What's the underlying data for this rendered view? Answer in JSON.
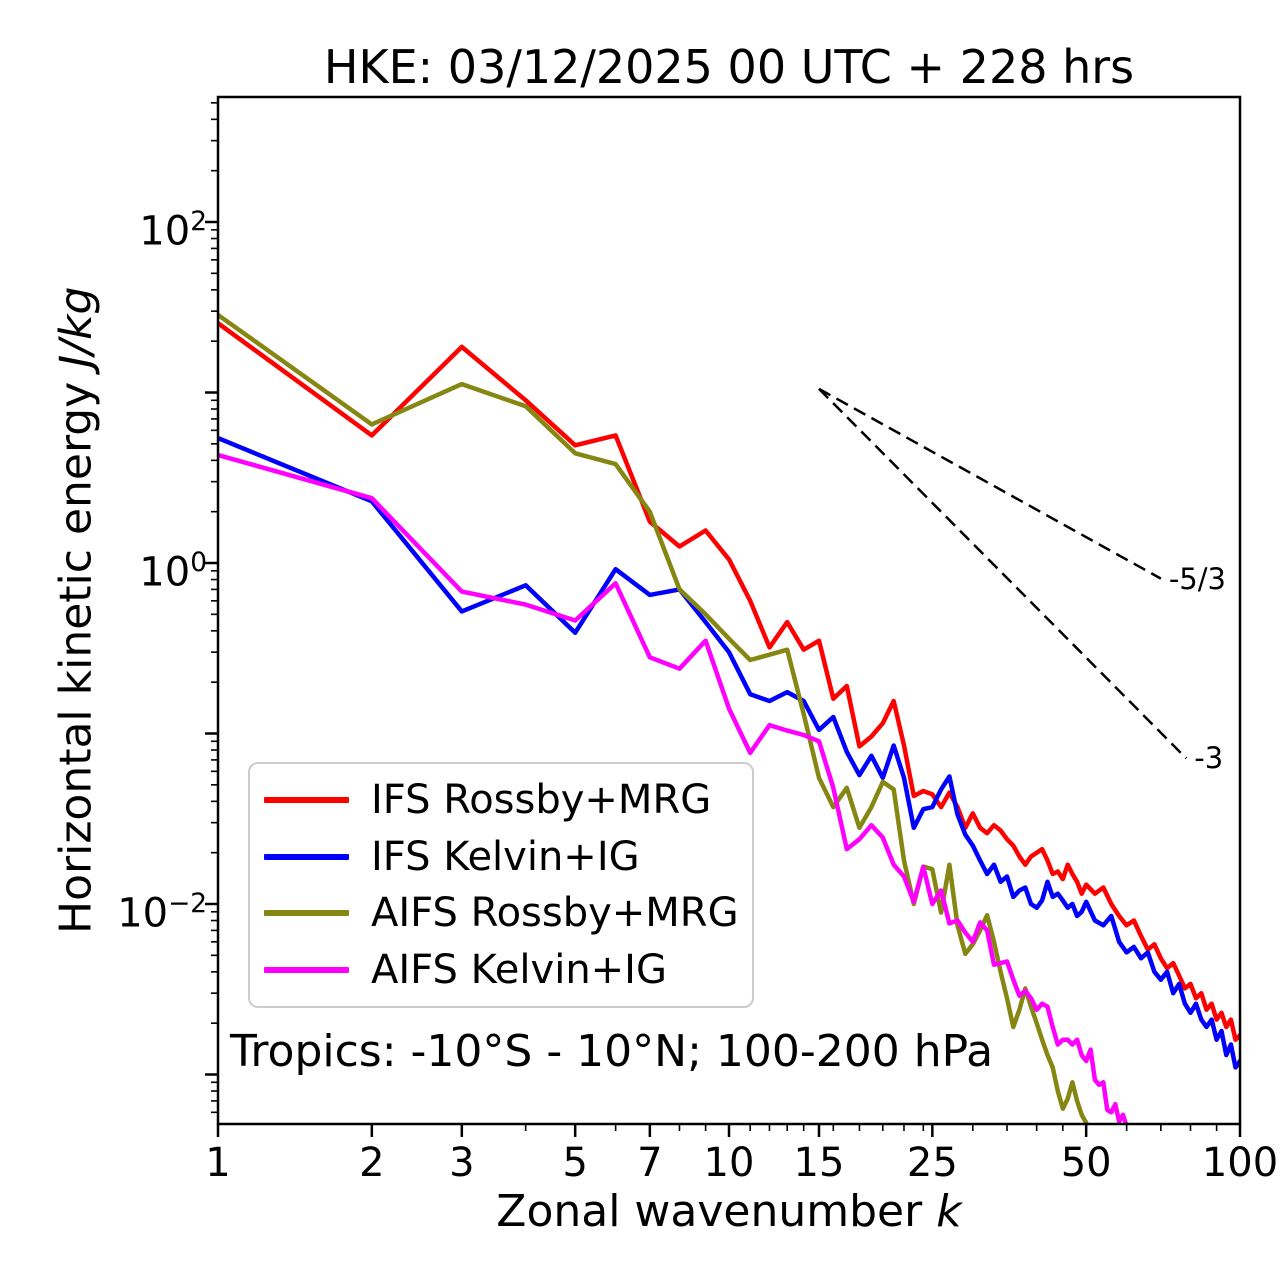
{
  "title": "HKE: 03/12/2025 00 UTC + 228 hrs",
  "axes": {
    "x_label": {
      "prefix": "Zonal wavenumber ",
      "math": "k"
    },
    "y_label": {
      "prefix": "Horizontal kinetic energy ",
      "math": "J/kg"
    },
    "x_major_ticks": [
      {
        "value": 1,
        "label": "1"
      },
      {
        "value": 2,
        "label": "2"
      },
      {
        "value": 3,
        "label": "3"
      },
      {
        "value": 5,
        "label": "5"
      },
      {
        "value": 7,
        "label": "7"
      },
      {
        "value": 10,
        "label": "10"
      },
      {
        "value": 15,
        "label": "15"
      },
      {
        "value": 25,
        "label": "25"
      },
      {
        "value": 50,
        "label": "50"
      },
      {
        "value": 100,
        "label": "100"
      }
    ],
    "x_minor_ticks": [
      4,
      6,
      8,
      9,
      11,
      12,
      13,
      14,
      16,
      18,
      20,
      22,
      24,
      30,
      35,
      40,
      45,
      60,
      70,
      80,
      90
    ],
    "y_major_ticks": [
      {
        "exponent": 2,
        "mantissa": "10",
        "sup": "2"
      },
      {
        "exponent": 0,
        "mantissa": "10",
        "sup": "0"
      },
      {
        "exponent": -2,
        "mantissa": "10",
        "sup": "−2"
      }
    ],
    "y_unlabeled_decade_exponents": [
      1,
      -1,
      -3
    ]
  },
  "annotations": {
    "region": "Tropics: -10°S - 10°N; 100-200 hPa",
    "slope_references": [
      {
        "label": "-5/3",
        "from_k": 15,
        "from_E": 10.5,
        "to_k": 70,
        "to_E": 0.81
      },
      {
        "label": "-3",
        "from_k": 15,
        "from_E": 10.5,
        "to_k": 78.5,
        "to_E": 0.0715
      }
    ]
  },
  "chart_data": {
    "type": "line",
    "title": "HKE: 03/12/2025 00 UTC + 228 hrs",
    "xlabel": "Zonal wavenumber k",
    "ylabel": "Horizontal kinetic energy J/kg",
    "x_axis": {
      "scale": "log",
      "range": [
        1,
        100
      ],
      "ticks": [
        1,
        2,
        3,
        5,
        7,
        10,
        15,
        25,
        50,
        100
      ]
    },
    "y_axis": {
      "scale": "log",
      "labeled_tick_exponents": [
        2,
        0,
        -2
      ],
      "visible_range_exponents": [
        -3.29,
        2.73
      ]
    },
    "grid": false,
    "legend_position": "lower-left",
    "reference_slopes": [
      "-5/3",
      "-3"
    ],
    "series": [
      {
        "name": "IFS Rossby+MRG",
        "color": "#ff0000",
        "points": [
          [
            1,
            25.5
          ],
          [
            2,
            5.6
          ],
          [
            3,
            18.5
          ],
          [
            4,
            9.0
          ],
          [
            5,
            4.9
          ],
          [
            6,
            5.6
          ],
          [
            7,
            1.75
          ],
          [
            8,
            1.25
          ],
          [
            9,
            1.55
          ],
          [
            10,
            1.05
          ],
          [
            11,
            0.6
          ],
          [
            12,
            0.32
          ],
          [
            13,
            0.45
          ],
          [
            14,
            0.31
          ],
          [
            15,
            0.35
          ],
          [
            16,
            0.16
          ],
          [
            17,
            0.19
          ],
          [
            18,
            0.084
          ],
          [
            19,
            0.096
          ],
          [
            20,
            0.115
          ],
          [
            21,
            0.155
          ],
          [
            22,
            0.085
          ],
          [
            23,
            0.043
          ],
          [
            24,
            0.046
          ],
          [
            25,
            0.044
          ],
          [
            26,
            0.037
          ],
          [
            27,
            0.045
          ],
          [
            28,
            0.037
          ],
          [
            29,
            0.028
          ],
          [
            30,
            0.034
          ],
          [
            31,
            0.028
          ],
          [
            32,
            0.026
          ],
          [
            33,
            0.029
          ],
          [
            34,
            0.027
          ],
          [
            35,
            0.024
          ],
          [
            36,
            0.022
          ],
          [
            37,
            0.019
          ],
          [
            38,
            0.017
          ],
          [
            39,
            0.019
          ],
          [
            40,
            0.02
          ],
          [
            41,
            0.021
          ],
          [
            42,
            0.018
          ],
          [
            43,
            0.015
          ],
          [
            44,
            0.0155
          ],
          [
            45,
            0.014
          ],
          [
            46,
            0.017
          ],
          [
            47,
            0.015
          ],
          [
            48,
            0.0135
          ],
          [
            49,
            0.0115
          ],
          [
            50,
            0.013
          ],
          [
            52,
            0.0115
          ],
          [
            54,
            0.0125
          ],
          [
            56,
            0.01
          ],
          [
            58,
            0.0085
          ],
          [
            60,
            0.0075
          ],
          [
            62,
            0.008
          ],
          [
            64,
            0.0065
          ],
          [
            66,
            0.0054
          ],
          [
            68,
            0.0058
          ],
          [
            70,
            0.0048
          ],
          [
            72,
            0.0042
          ],
          [
            74,
            0.0045
          ],
          [
            76,
            0.0038
          ],
          [
            78,
            0.0032
          ],
          [
            80,
            0.0034
          ],
          [
            82,
            0.0028
          ],
          [
            84,
            0.003
          ],
          [
            86,
            0.0024
          ],
          [
            88,
            0.0026
          ],
          [
            90,
            0.0021
          ],
          [
            92,
            0.0023
          ],
          [
            94,
            0.0019
          ],
          [
            96,
            0.0021
          ],
          [
            98,
            0.0016
          ],
          [
            100,
            0.0017
          ]
        ]
      },
      {
        "name": "IFS Kelvin+IG",
        "color": "#0000ff",
        "points": [
          [
            1,
            5.4
          ],
          [
            2,
            2.3
          ],
          [
            3,
            0.52
          ],
          [
            4,
            0.74
          ],
          [
            5,
            0.39
          ],
          [
            6,
            0.92
          ],
          [
            7,
            0.65
          ],
          [
            8,
            0.7
          ],
          [
            9,
            0.45
          ],
          [
            10,
            0.3
          ],
          [
            11,
            0.17
          ],
          [
            12,
            0.155
          ],
          [
            13,
            0.175
          ],
          [
            14,
            0.155
          ],
          [
            15,
            0.105
          ],
          [
            16,
            0.125
          ],
          [
            17,
            0.078
          ],
          [
            18,
            0.057
          ],
          [
            19,
            0.074
          ],
          [
            20,
            0.055
          ],
          [
            21,
            0.085
          ],
          [
            22,
            0.055
          ],
          [
            23,
            0.028
          ],
          [
            24,
            0.036
          ],
          [
            25,
            0.037
          ],
          [
            26,
            0.047
          ],
          [
            27,
            0.056
          ],
          [
            28,
            0.0335
          ],
          [
            29,
            0.0255
          ],
          [
            30,
            0.022
          ],
          [
            31,
            0.018
          ],
          [
            32,
            0.015
          ],
          [
            33,
            0.017
          ],
          [
            34,
            0.0135
          ],
          [
            35,
            0.0145
          ],
          [
            36,
            0.011
          ],
          [
            37,
            0.012
          ],
          [
            38,
            0.0125
          ],
          [
            39,
            0.01
          ],
          [
            40,
            0.0095
          ],
          [
            41,
            0.0105
          ],
          [
            42,
            0.0135
          ],
          [
            43,
            0.011
          ],
          [
            44,
            0.0115
          ],
          [
            45,
            0.0105
          ],
          [
            46,
            0.0095
          ],
          [
            47,
            0.01
          ],
          [
            48,
            0.0085
          ],
          [
            49,
            0.009
          ],
          [
            50,
            0.0103
          ],
          [
            52,
            0.008
          ],
          [
            54,
            0.0075
          ],
          [
            56,
            0.0085
          ],
          [
            58,
            0.006
          ],
          [
            60,
            0.0052
          ],
          [
            62,
            0.0056
          ],
          [
            64,
            0.0048
          ],
          [
            66,
            0.0052
          ],
          [
            68,
            0.004
          ],
          [
            70,
            0.0036
          ],
          [
            72,
            0.004
          ],
          [
            74,
            0.003
          ],
          [
            76,
            0.0034
          ],
          [
            78,
            0.0026
          ],
          [
            80,
            0.0023
          ],
          [
            82,
            0.0026
          ],
          [
            84,
            0.0021
          ],
          [
            86,
            0.0019
          ],
          [
            88,
            0.0021
          ],
          [
            90,
            0.0016
          ],
          [
            92,
            0.0018
          ],
          [
            94,
            0.0013
          ],
          [
            96,
            0.0015
          ],
          [
            98,
            0.0011
          ],
          [
            100,
            0.0012
          ]
        ]
      },
      {
        "name": "AIFS Rossby+MRG",
        "color": "#868613",
        "points": [
          [
            1,
            28.5
          ],
          [
            2,
            6.5
          ],
          [
            3,
            11.2
          ],
          [
            4,
            8.3
          ],
          [
            5,
            4.4
          ],
          [
            6,
            3.8
          ],
          [
            7,
            2.0
          ],
          [
            8,
            0.7
          ],
          [
            9,
            0.5
          ],
          [
            10,
            0.36
          ],
          [
            11,
            0.27
          ],
          [
            12,
            0.29
          ],
          [
            13,
            0.31
          ],
          [
            14,
            0.13
          ],
          [
            15,
            0.055
          ],
          [
            16,
            0.037
          ],
          [
            17,
            0.048
          ],
          [
            18,
            0.028
          ],
          [
            19,
            0.037
          ],
          [
            20,
            0.052
          ],
          [
            21,
            0.047
          ],
          [
            22,
            0.018
          ],
          [
            23,
            0.01
          ],
          [
            24,
            0.0166
          ],
          [
            25,
            0.016
          ],
          [
            26,
            0.0089
          ],
          [
            27,
            0.017
          ],
          [
            28,
            0.0075
          ],
          [
            29,
            0.0051
          ],
          [
            30,
            0.0058
          ],
          [
            31,
            0.007
          ],
          [
            32,
            0.0086
          ],
          [
            33,
            0.006
          ],
          [
            34,
            0.004
          ],
          [
            35,
            0.0028
          ],
          [
            36,
            0.0019
          ],
          [
            37,
            0.0024
          ],
          [
            38,
            0.0032
          ],
          [
            39,
            0.0025
          ],
          [
            40,
            0.002
          ],
          [
            41,
            0.0016
          ],
          [
            42,
            0.0013
          ],
          [
            43,
            0.0011
          ],
          [
            44,
            0.0008
          ],
          [
            45,
            0.00063
          ],
          [
            46,
            0.00072
          ],
          [
            47,
            0.0009
          ],
          [
            48,
            0.0007
          ],
          [
            49,
            0.00058
          ],
          [
            50,
            0.00052
          ],
          [
            51,
            0.00047
          ],
          [
            52,
            0.0004
          ]
        ]
      },
      {
        "name": "AIFS Kelvin+IG",
        "color": "#ff00ff",
        "points": [
          [
            1,
            4.3
          ],
          [
            2,
            2.4
          ],
          [
            3,
            0.68
          ],
          [
            4,
            0.57
          ],
          [
            5,
            0.46
          ],
          [
            6,
            0.76
          ],
          [
            7,
            0.28
          ],
          [
            8,
            0.24
          ],
          [
            9,
            0.35
          ],
          [
            10,
            0.14
          ],
          [
            11,
            0.077
          ],
          [
            12,
            0.112
          ],
          [
            13,
            0.104
          ],
          [
            14,
            0.098
          ],
          [
            15,
            0.09
          ],
          [
            16,
            0.048
          ],
          [
            17,
            0.021
          ],
          [
            18,
            0.024
          ],
          [
            19,
            0.029
          ],
          [
            20,
            0.0245
          ],
          [
            21,
            0.017
          ],
          [
            22,
            0.0145
          ],
          [
            23,
            0.0103
          ],
          [
            24,
            0.0165
          ],
          [
            25,
            0.01
          ],
          [
            26,
            0.012
          ],
          [
            27,
            0.0077
          ],
          [
            28,
            0.008
          ],
          [
            29,
            0.0068
          ],
          [
            30,
            0.006
          ],
          [
            31,
            0.0078
          ],
          [
            32,
            0.007
          ],
          [
            33,
            0.0044
          ],
          [
            34,
            0.0045
          ],
          [
            35,
            0.0046
          ],
          [
            36,
            0.0036
          ],
          [
            37,
            0.0029
          ],
          [
            38,
            0.0031
          ],
          [
            39,
            0.0028
          ],
          [
            40,
            0.0024
          ],
          [
            41,
            0.0026
          ],
          [
            42,
            0.0025
          ],
          [
            43,
            0.0019
          ],
          [
            44,
            0.0015
          ],
          [
            45,
            0.0016
          ],
          [
            46,
            0.0016
          ],
          [
            47,
            0.0015
          ],
          [
            48,
            0.0016
          ],
          [
            49,
            0.0013
          ],
          [
            50,
            0.0012
          ],
          [
            51,
            0.0014
          ],
          [
            52,
            0.00093
          ],
          [
            53,
            0.00087
          ],
          [
            54,
            0.0009
          ],
          [
            55,
            0.00062
          ],
          [
            56,
            0.0006
          ],
          [
            57,
            0.00067
          ],
          [
            58,
            0.00053
          ],
          [
            59,
            0.00058
          ],
          [
            60,
            0.0005
          ],
          [
            61,
            0.00046
          ],
          [
            62,
            0.00042
          ]
        ]
      }
    ]
  }
}
